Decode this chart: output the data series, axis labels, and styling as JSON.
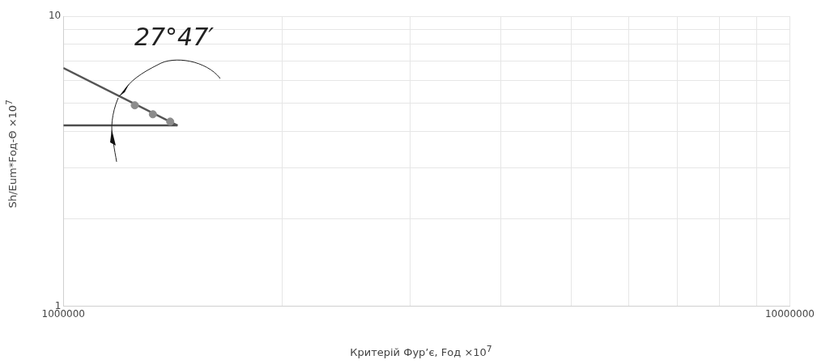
{
  "chart_data": {
    "type": "scatter",
    "xlabel": "Критерій Фур’є, Fод ×10$^{7}$",
    "ylabel": "Sh/Eum*Fод-Θ ×10$^{7}$",
    "log": "xy",
    "grid": true,
    "legend": false,
    "xlim": [
      1000000,
      10000000
    ],
    "xticks": [
      1000000,
      {
        "value": 2000000,
        "label": null
      },
      {
        "value": 3000000,
        "label": null
      },
      {
        "value": 4000000,
        "label": null
      },
      {
        "value": 5000000,
        "label": null
      },
      {
        "value": 6000000,
        "label": null
      },
      {
        "value": 7000000,
        "label": null
      },
      {
        "value": 8000000,
        "label": null
      },
      {
        "value": 9000000,
        "label": null
      },
      10000000
    ],
    "ylim": [
      1,
      10
    ],
    "yticks": [
      1,
      {
        "value": 2,
        "label": null
      },
      {
        "value": 3,
        "label": null
      },
      {
        "value": 4,
        "label": null
      },
      {
        "value": 5,
        "label": null
      },
      {
        "value": 6,
        "label": null
      },
      {
        "value": 7,
        "label": null
      },
      {
        "value": 8,
        "label": null
      },
      {
        "value": 9,
        "label": null
      },
      10
    ],
    "annotations": [
      "27°47′"
    ],
    "series": [
      {
        "type": "scatter",
        "marker": "circle",
        "color": "#8c8c8c",
        "x": [
          1254000,
          1328000,
          1403000
        ],
        "values": [
          4.93,
          4.59,
          4.33
        ]
      },
      {
        "type": "line",
        "marker": "none",
        "color": "#555555",
        "x": [
          1000000,
          1436000
        ],
        "values": [
          6.63,
          4.2
        ]
      },
      {
        "type": "line",
        "marker": "none",
        "color": "#4d4d4d",
        "x": [
          1000000,
          1436000
        ],
        "values": [
          4.2,
          4.2
        ]
      }
    ]
  }
}
